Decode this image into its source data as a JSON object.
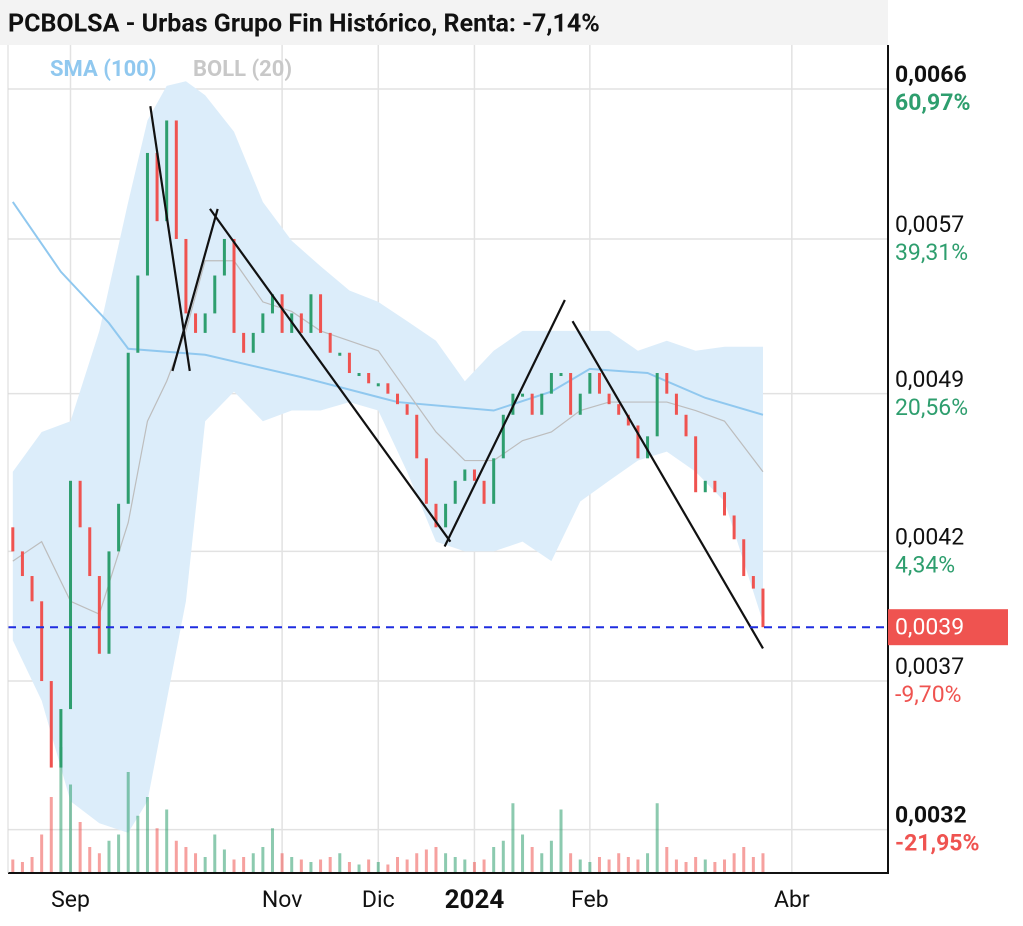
{
  "chart_data": {
    "type": "ohlc",
    "title": "PCBOLSA - Urbas Grupo Fin Histórico, Renta: -7,14%",
    "log_scale": true,
    "grid": true,
    "xlim": [
      -0.5,
      91
    ],
    "xticks": [
      {
        "value": 6,
        "label": "Sep"
      },
      {
        "value": 28,
        "label": "Nov"
      },
      {
        "value": 38,
        "label": "Dic"
      },
      {
        "value": 48,
        "label": "2024"
      },
      {
        "value": 60,
        "label": "Feb"
      },
      {
        "value": 81,
        "label": "Abr"
      }
    ],
    "ylim": [
      0.00307,
      0.00689
    ],
    "yticks": [
      {
        "value": 0.0066,
        "label": "0,0066"
      },
      {
        "value": 0.0057,
        "label": "0,0057"
      },
      {
        "value": 0.0049,
        "label": "0,0049"
      },
      {
        "value": 0.0042,
        "label": "0,0042"
      },
      {
        "value": 0.0037,
        "label": "0,0037"
      },
      {
        "value": 0.0032,
        "label": "0,0032"
      }
    ],
    "ytick_changes": [
      "60,97%",
      "39,31%",
      "20,56%",
      "4,34%",
      "-9,70%",
      "-21,95%"
    ],
    "last_price": {
      "value": 0.0039,
      "label": "0,0039"
    },
    "up_color": "#2e9e6e",
    "down_color": "#ef5350",
    "open": [
      0.0043,
      0.0042,
      0.0041,
      0.004,
      0.0037,
      0.0034,
      0.0036,
      0.0045,
      0.0043,
      0.0041,
      0.0038,
      0.0042,
      0.0044,
      0.0051,
      0.0055,
      0.0062,
      0.0058,
      0.0064,
      0.0057,
      0.0053,
      0.0052,
      0.0053,
      0.0055,
      0.0057,
      0.0052,
      0.0051,
      0.0052,
      0.0053,
      0.0054,
      0.0052,
      0.0053,
      0.0052,
      0.0054,
      0.0052,
      0.0051,
      0.0051,
      0.005,
      0.005,
      0.00495,
      0.00495,
      0.0049,
      0.00485,
      0.0048,
      0.0046,
      0.0044,
      0.0043,
      0.0044,
      0.0045,
      0.00455,
      0.0045,
      0.0044,
      0.0046,
      0.0048,
      0.0049,
      0.0049,
      0.0048,
      0.0049,
      0.005,
      0.005,
      0.0048,
      0.0049,
      0.005,
      0.0049,
      0.00485,
      0.0048,
      0.00475,
      0.0046,
      0.0047,
      0.005,
      0.0049,
      0.0048,
      0.0047,
      0.00445,
      0.0045,
      0.00445,
      0.00435,
      0.00425,
      0.0041,
      0.00405
    ],
    "close": [
      0.0042,
      0.0041,
      0.004,
      0.0037,
      0.0034,
      0.0036,
      0.0045,
      0.0043,
      0.0041,
      0.0038,
      0.0042,
      0.0044,
      0.0051,
      0.0055,
      0.0062,
      0.0058,
      0.0064,
      0.0057,
      0.0053,
      0.0052,
      0.0053,
      0.0055,
      0.0057,
      0.0052,
      0.0051,
      0.0052,
      0.0053,
      0.0054,
      0.0052,
      0.0053,
      0.0052,
      0.0054,
      0.0052,
      0.0051,
      0.0051,
      0.005,
      0.005,
      0.00495,
      0.00495,
      0.0049,
      0.00485,
      0.0048,
      0.0046,
      0.0044,
      0.0043,
      0.0044,
      0.0045,
      0.00455,
      0.0045,
      0.0044,
      0.0046,
      0.0048,
      0.0049,
      0.0049,
      0.0048,
      0.0049,
      0.005,
      0.005,
      0.0048,
      0.0049,
      0.005,
      0.0049,
      0.00485,
      0.0048,
      0.00475,
      0.0046,
      0.0047,
      0.005,
      0.0049,
      0.0048,
      0.0047,
      0.00445,
      0.0045,
      0.00445,
      0.00435,
      0.00425,
      0.0041,
      0.00405,
      0.0039
    ],
    "volume": [
      10,
      8,
      12,
      30,
      60,
      100,
      70,
      40,
      20,
      15,
      25,
      30,
      80,
      45,
      60,
      35,
      50,
      25,
      20,
      15,
      12,
      30,
      18,
      10,
      12,
      15,
      20,
      35,
      15,
      12,
      10,
      8,
      10,
      12,
      15,
      8,
      6,
      10,
      8,
      6,
      12,
      10,
      15,
      18,
      20,
      15,
      12,
      10,
      8,
      10,
      20,
      25,
      55,
      30,
      20,
      15,
      25,
      50,
      15,
      10,
      8,
      12,
      10,
      15,
      12,
      10,
      15,
      55,
      20,
      10,
      8,
      12,
      10,
      8,
      10,
      15,
      20,
      12,
      15
    ],
    "series": [
      {
        "name": "SMA (100)",
        "color": "#90c8ef",
        "x": [
          0,
          5,
          10,
          12,
          20,
          30,
          40,
          50,
          56,
          60,
          66,
          72,
          78
        ],
        "values": [
          0.00591,
          0.00552,
          0.00525,
          0.00512,
          0.00509,
          0.00498,
          0.00486,
          0.00482,
          0.00491,
          0.00502,
          0.005,
          0.00488,
          0.0048
        ]
      },
      {
        "name": "BOLL (20)",
        "color": "#c8c8c8",
        "band_color": "#dcedfa",
        "x": [
          0,
          3,
          6,
          9,
          12,
          14,
          16,
          18,
          20,
          23,
          26,
          29,
          32,
          35,
          38,
          41,
          44,
          47,
          50,
          53,
          56,
          59,
          62,
          65,
          68,
          71,
          74,
          78
        ],
        "upper": [
          0.00454,
          0.00472,
          0.00477,
          0.00521,
          0.00591,
          0.0064,
          0.00662,
          0.00665,
          0.00656,
          0.00633,
          0.00591,
          0.00569,
          0.00555,
          0.00542,
          0.00536,
          0.00526,
          0.00516,
          0.00496,
          0.00511,
          0.00521,
          0.00521,
          0.00521,
          0.00521,
          0.00511,
          0.00516,
          0.00511,
          0.00513,
          0.00513
        ],
        "lower": [
          0.00385,
          0.00363,
          0.00329,
          0.00322,
          0.00319,
          0.00329,
          0.00363,
          0.004,
          0.00477,
          0.00491,
          0.00477,
          0.00482,
          0.00482,
          0.00486,
          0.00482,
          0.00454,
          0.00424,
          0.0042,
          0.0042,
          0.00424,
          0.00416,
          0.00441,
          0.0045,
          0.00459,
          0.00463,
          0.00454,
          0.00441,
          0.00392
        ],
        "values": [
          0.00416,
          0.00424,
          0.004,
          0.00395,
          0.00432,
          0.00477,
          0.00496,
          0.00521,
          0.00558,
          0.00558,
          0.00536,
          0.00531,
          0.00521,
          0.00516,
          0.00511,
          0.00491,
          0.00472,
          0.00459,
          0.00459,
          0.00468,
          0.00472,
          0.00482,
          0.00486,
          0.00486,
          0.00486,
          0.00482,
          0.00477,
          0.00454
        ]
      }
    ],
    "trend_lines": [
      {
        "x": [
          14.3,
          18.4
        ],
        "y": [
          0.00649,
          0.00501
        ]
      },
      {
        "x": [
          16.6,
          21.3
        ],
        "y": [
          0.00501,
          0.00587
        ]
      },
      {
        "x": [
          20.5,
          45.5
        ],
        "y": [
          0.00587,
          0.00424
        ]
      },
      {
        "x": [
          44.9,
          57.4
        ],
        "y": [
          0.00422,
          0.00537
        ]
      },
      {
        "x": [
          58.2,
          78.0
        ],
        "y": [
          0.00526,
          0.00382
        ]
      }
    ]
  }
}
